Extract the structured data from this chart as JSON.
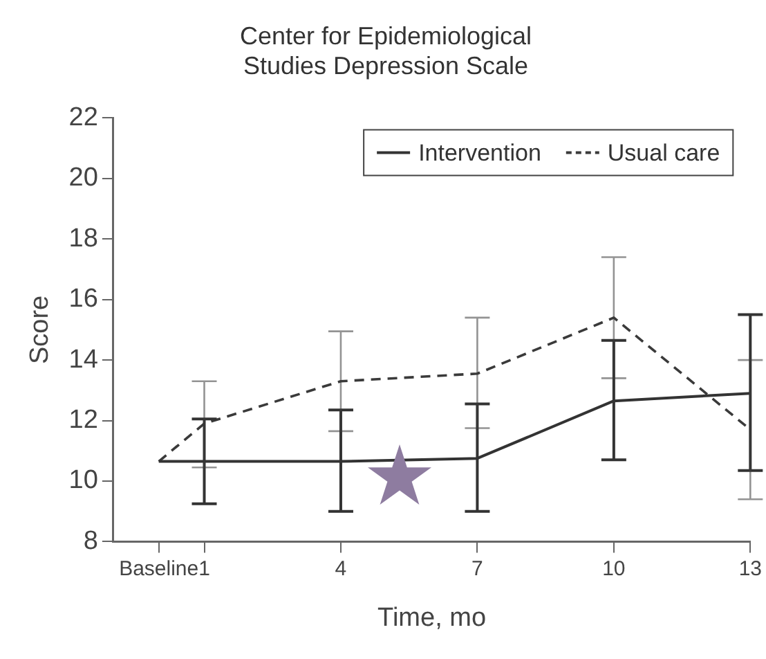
{
  "chart_data": {
    "type": "line",
    "title": "Center for Epidemiological Studies Depression Scale",
    "xlabel": "Time, mo",
    "ylabel": "Score",
    "x": [
      0,
      1,
      4,
      7,
      10,
      13
    ],
    "xlim": [
      -1,
      13
    ],
    "xticks": [
      {
        "value": 0,
        "label": "Baseline"
      },
      1,
      4,
      7,
      10,
      13
    ],
    "ylim": [
      8,
      22
    ],
    "yticks": [
      8,
      10,
      12,
      14,
      16,
      18,
      20,
      22
    ],
    "grid": false,
    "legend": "top right",
    "series": [
      {
        "name": "Intervention",
        "color": "#333333",
        "line_style": "solid",
        "values": [
          10.65,
          10.65,
          10.65,
          10.75,
          12.65,
          12.9
        ],
        "errors": [
          null,
          [
            9.25,
            12.05
          ],
          [
            9.0,
            12.35
          ],
          [
            9.0,
            12.55
          ],
          [
            10.7,
            14.65
          ],
          [
            10.35,
            15.5
          ]
        ]
      },
      {
        "name": "Usual care",
        "color": "#3a3a3a",
        "line_style": "dashed",
        "values": [
          10.65,
          11.9,
          13.3,
          13.55,
          15.4,
          11.7
        ],
        "errors": [
          null,
          [
            10.45,
            13.3
          ],
          [
            11.65,
            14.95
          ],
          [
            11.75,
            15.4
          ],
          [
            13.4,
            17.4
          ],
          [
            9.4,
            14.0
          ]
        ]
      }
    ]
  }
}
